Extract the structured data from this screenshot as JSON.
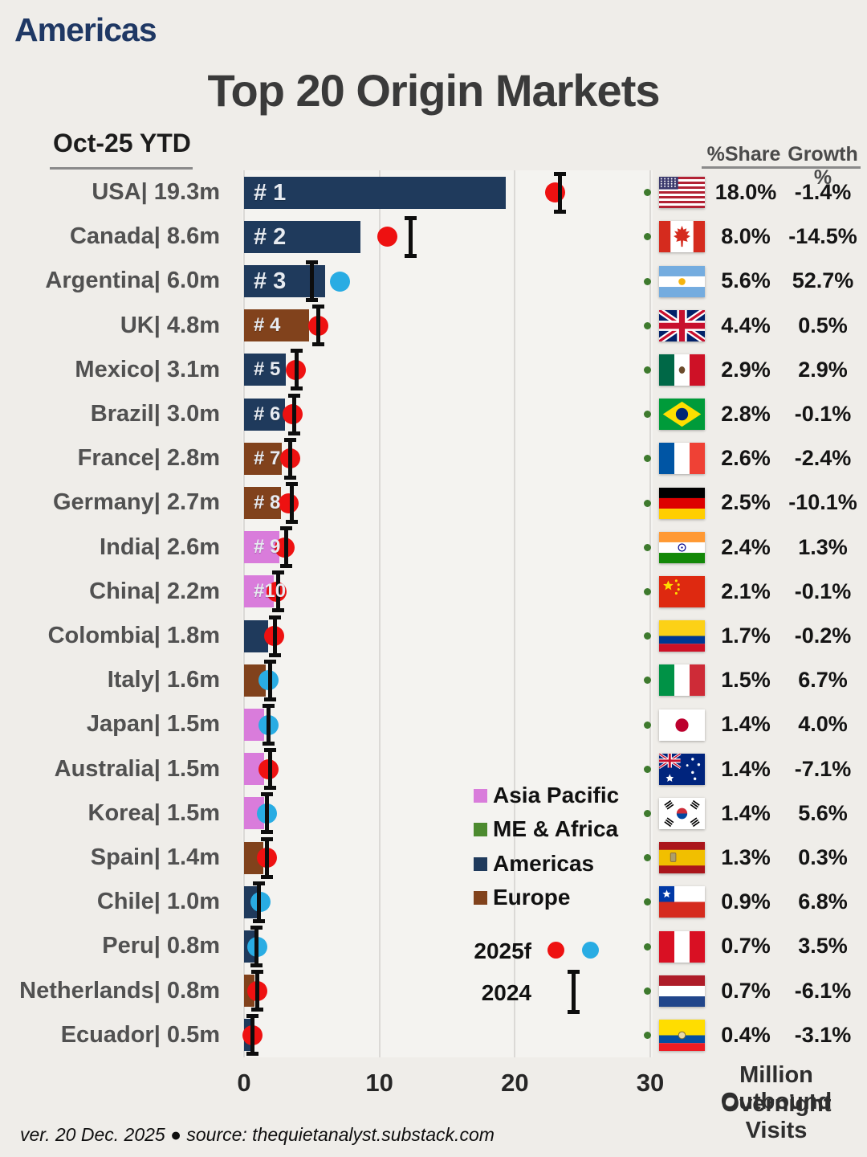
{
  "header": {
    "region_label": "Americas",
    "title": "Top 20 Origin Markets",
    "period_label": "Oct-25 YTD",
    "share_header": "%Share",
    "growth_header": "Growth %"
  },
  "legend": {
    "regions": [
      {
        "label": "Asia Pacific",
        "color_key": "region_asia_pacific"
      },
      {
        "label": "ME & Africa",
        "color_key": "region_me_africa"
      },
      {
        "label": "Americas",
        "color_key": "region_americas"
      },
      {
        "label": "Europe",
        "color_key": "region_europe"
      }
    ],
    "forecast_label": "2025f",
    "previous_year_label": "2024"
  },
  "axis": {
    "ticks": [
      "0",
      "10",
      "20",
      "30"
    ],
    "tick_values": [
      0,
      10,
      20,
      30
    ],
    "label_line1": "Million Outbound",
    "label_line2": "Overnight Visits"
  },
  "footer": {
    "text": "ver. 20 Dec. 2025 ● source: thequietanalyst.substack.com"
  },
  "colors": {
    "accent_navy": "#1f3864",
    "region_asia_pacific": "#d97cdb",
    "region_me_africa": "#4c8a2f",
    "region_americas": "#1f3a5c",
    "region_europe": "#81421c",
    "dot_red": "#ee1111",
    "dot_blue": "#29ace3",
    "errorbar_black": "#0d0d0d",
    "bullet_green": "#3e7a2e"
  },
  "chart_data": {
    "type": "bar",
    "orientation": "horizontal",
    "title": "Top 20 Origin Markets",
    "subtitle": "Oct-25 YTD",
    "xlabel": "Million Outbound Overnight Visits",
    "xlim": [
      0,
      30
    ],
    "x_ticks": [
      0,
      10,
      20,
      30
    ],
    "grid": "vertical-light",
    "bar_series_label": "Oct-25 YTD",
    "dot_series_label": "2025f",
    "errorbar_series_label": "2024",
    "rows": [
      {
        "country": "USA",
        "row_label": "USA| 19.3m",
        "ytd_value_m": 19.3,
        "rank_label": "# 1",
        "region": "Americas",
        "flag": "usa",
        "forecast_2025f_m": 23.0,
        "forecast_dot_color": "red",
        "value_2024_m": 23.3,
        "share_pct": "18.0%",
        "growth_pct": "-1.4%"
      },
      {
        "country": "Canada",
        "row_label": "Canada| 8.6m",
        "ytd_value_m": 8.6,
        "rank_label": "# 2",
        "region": "Americas",
        "flag": "canada",
        "forecast_2025f_m": 10.6,
        "forecast_dot_color": "red",
        "value_2024_m": 12.3,
        "share_pct": "8.0%",
        "growth_pct": "-14.5%"
      },
      {
        "country": "Argentina",
        "row_label": "Argentina| 6.0m",
        "ytd_value_m": 6.0,
        "rank_label": "# 3",
        "region": "Americas",
        "flag": "argentina",
        "forecast_2025f_m": 7.1,
        "forecast_dot_color": "blue",
        "value_2024_m": 5.0,
        "share_pct": "5.6%",
        "growth_pct": "52.7%"
      },
      {
        "country": "UK",
        "row_label": "UK| 4.8m",
        "ytd_value_m": 4.8,
        "rank_label": "# 4",
        "region": "Europe",
        "flag": "uk",
        "forecast_2025f_m": 5.5,
        "forecast_dot_color": "red",
        "value_2024_m": 5.5,
        "share_pct": "4.4%",
        "growth_pct": "0.5%"
      },
      {
        "country": "Mexico",
        "row_label": "Mexico| 3.1m",
        "ytd_value_m": 3.1,
        "rank_label": "# 5",
        "region": "Americas",
        "flag": "mexico",
        "forecast_2025f_m": 3.8,
        "forecast_dot_color": "red",
        "value_2024_m": 3.9,
        "share_pct": "2.9%",
        "growth_pct": "2.9%"
      },
      {
        "country": "Brazil",
        "row_label": "Brazil| 3.0m",
        "ytd_value_m": 3.0,
        "rank_label": "# 6",
        "region": "Americas",
        "flag": "brazil",
        "forecast_2025f_m": 3.6,
        "forecast_dot_color": "red",
        "value_2024_m": 3.7,
        "share_pct": "2.8%",
        "growth_pct": "-0.1%"
      },
      {
        "country": "France",
        "row_label": "France| 2.8m",
        "ytd_value_m": 2.8,
        "rank_label": "# 7",
        "region": "Europe",
        "flag": "france",
        "forecast_2025f_m": 3.4,
        "forecast_dot_color": "red",
        "value_2024_m": 3.4,
        "share_pct": "2.6%",
        "growth_pct": "-2.4%"
      },
      {
        "country": "Germany",
        "row_label": "Germany| 2.7m",
        "ytd_value_m": 2.7,
        "rank_label": "# 8",
        "region": "Europe",
        "flag": "germany",
        "forecast_2025f_m": 3.3,
        "forecast_dot_color": "red",
        "value_2024_m": 3.5,
        "share_pct": "2.5%",
        "growth_pct": "-10.1%"
      },
      {
        "country": "India",
        "row_label": "India| 2.6m",
        "ytd_value_m": 2.6,
        "rank_label": "# 9",
        "region": "Asia Pacific",
        "flag": "india",
        "forecast_2025f_m": 3.0,
        "forecast_dot_color": "red",
        "value_2024_m": 3.1,
        "share_pct": "2.4%",
        "growth_pct": "1.3%"
      },
      {
        "country": "China",
        "row_label": "China| 2.2m",
        "ytd_value_m": 2.2,
        "rank_label": "#10",
        "region": "Asia Pacific",
        "flag": "china",
        "forecast_2025f_m": 2.4,
        "forecast_dot_color": "red",
        "value_2024_m": 2.5,
        "share_pct": "2.1%",
        "growth_pct": "-0.1%"
      },
      {
        "country": "Colombia",
        "row_label": "Colombia| 1.8m",
        "ytd_value_m": 1.8,
        "rank_label": "",
        "region": "Americas",
        "flag": "colombia",
        "forecast_2025f_m": 2.2,
        "forecast_dot_color": "red",
        "value_2024_m": 2.3,
        "share_pct": "1.7%",
        "growth_pct": "-0.2%"
      },
      {
        "country": "Italy",
        "row_label": "Italy| 1.6m",
        "ytd_value_m": 1.6,
        "rank_label": "",
        "region": "Europe",
        "flag": "italy",
        "forecast_2025f_m": 1.8,
        "forecast_dot_color": "blue",
        "value_2024_m": 1.9,
        "share_pct": "1.5%",
        "growth_pct": "6.7%"
      },
      {
        "country": "Japan",
        "row_label": "Japan| 1.5m",
        "ytd_value_m": 1.5,
        "rank_label": "",
        "region": "Asia Pacific",
        "flag": "japan",
        "forecast_2025f_m": 1.8,
        "forecast_dot_color": "blue",
        "value_2024_m": 1.8,
        "share_pct": "1.4%",
        "growth_pct": "4.0%"
      },
      {
        "country": "Australia",
        "row_label": "Australia| 1.5m",
        "ytd_value_m": 1.5,
        "rank_label": "",
        "region": "Asia Pacific",
        "flag": "australia",
        "forecast_2025f_m": 1.8,
        "forecast_dot_color": "red",
        "value_2024_m": 1.9,
        "share_pct": "1.4%",
        "growth_pct": "-7.1%"
      },
      {
        "country": "Korea",
        "row_label": "Korea| 1.5m",
        "ytd_value_m": 1.5,
        "rank_label": "",
        "region": "Asia Pacific",
        "flag": "korea",
        "forecast_2025f_m": 1.7,
        "forecast_dot_color": "blue",
        "value_2024_m": 1.7,
        "share_pct": "1.4%",
        "growth_pct": "5.6%"
      },
      {
        "country": "Spain",
        "row_label": "Spain| 1.4m",
        "ytd_value_m": 1.4,
        "rank_label": "",
        "region": "Europe",
        "flag": "spain",
        "forecast_2025f_m": 1.7,
        "forecast_dot_color": "red",
        "value_2024_m": 1.7,
        "share_pct": "1.3%",
        "growth_pct": "0.3%"
      },
      {
        "country": "Chile",
        "row_label": "Chile| 1.0m",
        "ytd_value_m": 1.0,
        "rank_label": "",
        "region": "Americas",
        "flag": "chile",
        "forecast_2025f_m": 1.2,
        "forecast_dot_color": "blue",
        "value_2024_m": 1.1,
        "share_pct": "0.9%",
        "growth_pct": "6.8%"
      },
      {
        "country": "Peru",
        "row_label": "Peru| 0.8m",
        "ytd_value_m": 0.8,
        "rank_label": "",
        "region": "Americas",
        "flag": "peru",
        "forecast_2025f_m": 1.0,
        "forecast_dot_color": "blue",
        "value_2024_m": 0.9,
        "share_pct": "0.7%",
        "growth_pct": "3.5%"
      },
      {
        "country": "Netherlands",
        "row_label": "Netherlands| 0.8m",
        "ytd_value_m": 0.8,
        "rank_label": "",
        "region": "Europe",
        "flag": "netherlands",
        "forecast_2025f_m": 1.0,
        "forecast_dot_color": "red",
        "value_2024_m": 1.0,
        "share_pct": "0.7%",
        "growth_pct": "-6.1%"
      },
      {
        "country": "Ecuador",
        "row_label": "Ecuador| 0.5m",
        "ytd_value_m": 0.5,
        "rank_label": "",
        "region": "Americas",
        "flag": "ecuador",
        "forecast_2025f_m": 0.6,
        "forecast_dot_color": "red",
        "value_2024_m": 0.6,
        "share_pct": "0.4%",
        "growth_pct": "-3.1%"
      }
    ]
  }
}
